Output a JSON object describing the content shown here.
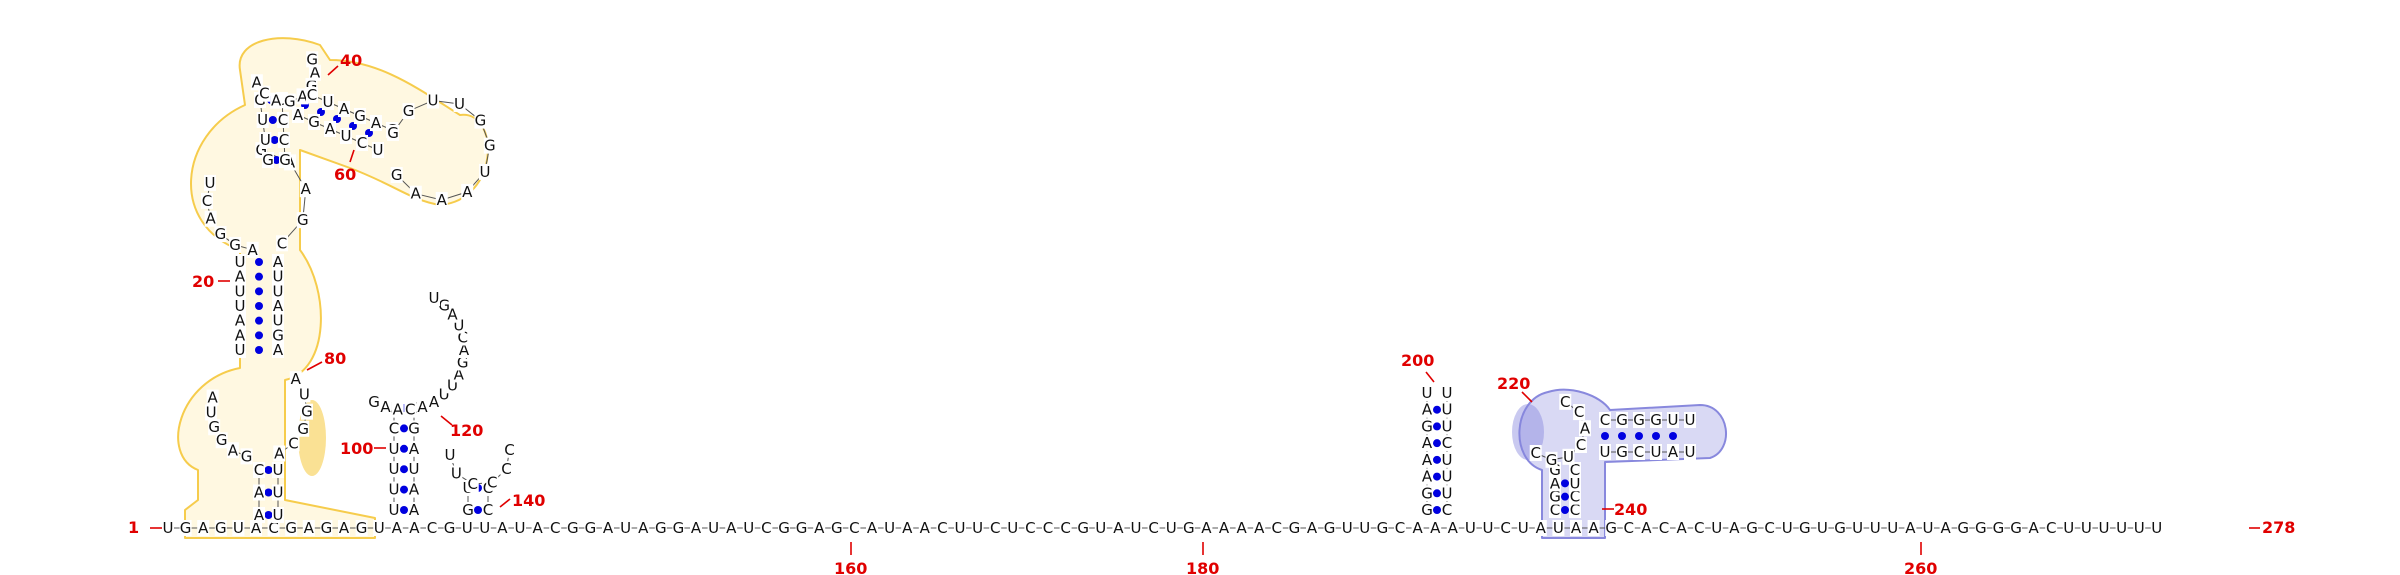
{
  "colors": {
    "nucleotide": "#111111",
    "base_pair": "#0000e0",
    "backbone": "#555555",
    "number": "#e00000",
    "highlight_yellow": "#f6cc4c",
    "highlight_yellow_fill": "rgba(255,236,170,0.35)",
    "highlight_blue": "#8888dd",
    "highlight_blue_fill": "rgba(136,136,221,0.45)"
  },
  "numbers": {
    "n1": "1",
    "n20": "20",
    "n40": "40",
    "n60": "60",
    "n80": "80",
    "n100": "100",
    "n120": "120",
    "n140": "140",
    "n160": "160",
    "n180": "180",
    "n200": "200",
    "n220": "220",
    "n240": "240",
    "n260": "260",
    "n278": "278"
  },
  "strands": {
    "d1_left_trunk": "UAAUUAU",
    "d1_right_trunk": "AGUAUUA",
    "d1_top_left": "UGCAUU",
    "d1_top_right": "CCGCC",
    "d1_cap": "ACAGAGAG",
    "d1_branch_top": "CUAGAG",
    "d1_branch_bottom": "AGAUCU",
    "d1_hairpin": "GGUUGGUAAAG",
    "d1_left_loop_big": "UCAGGA",
    "d1_right_loop_big": "GAAGC",
    "d1_lower_left_loop": "AUGGAG",
    "d1_lower_right_loop": "AUGGCA",
    "d2_left": "UUUUCU",
    "d2_right": "AAUAGCA",
    "d2_loop": "GAACAAUUAGACUAGU",
    "d3_stem": "GGC",
    "d3_loop": "UUCCCC",
    "d4_left": "GGAAAGAU",
    "d4_right": "CUUUCUUU",
    "d5_stem_top": "CGGGUUUC",
    "d5_stem_bottom": "UGCUAUC",
    "d5_left": "CGAG",
    "d5_right": "CCUC",
    "d5_loop": "CGUCACC",
    "baseline": "UGAGUACGAGAGUAACGUUAUACGGAUAGGAUAUCGGAGCAUAACUUCUCCCGUAUCUGAAAACGAGUUGCAAAUUCUAUAAGCACACUAGCUGUGUUUAUAGGGGACUUUUUU"
  }
}
